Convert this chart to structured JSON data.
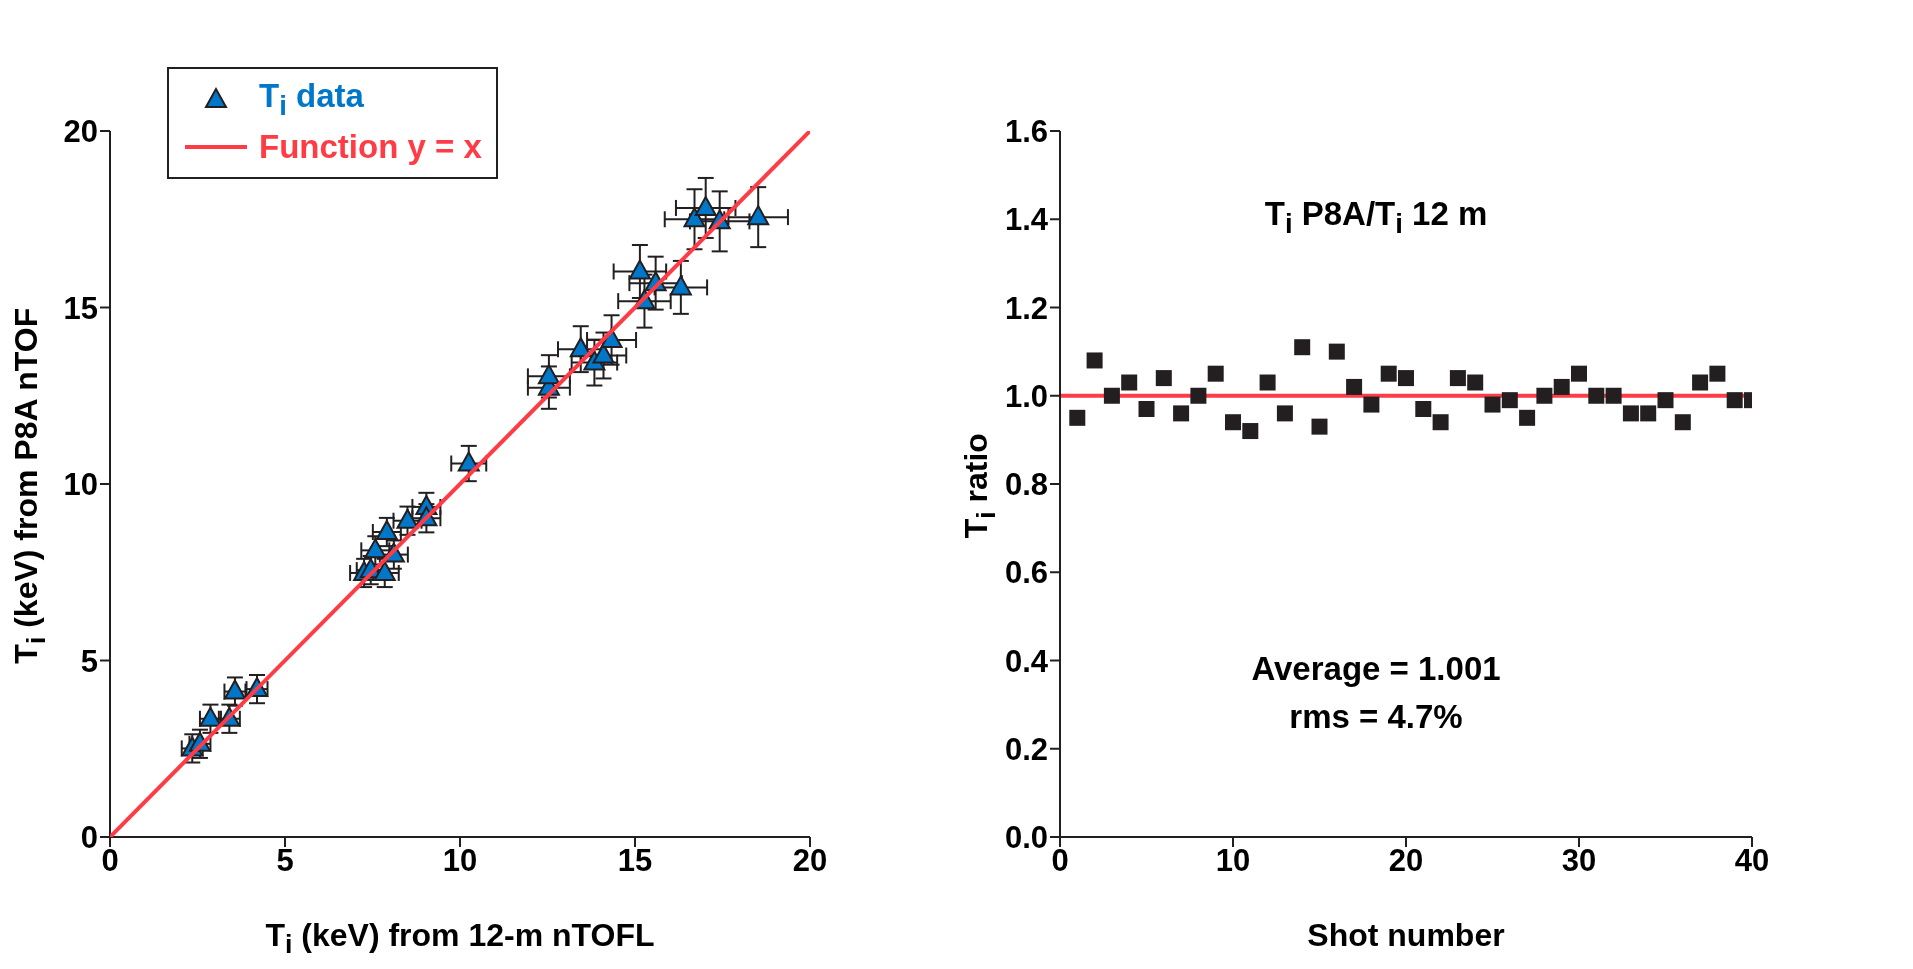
{
  "chart_data": [
    {
      "type": "scatter",
      "xlabel": "T$_{i}$ (keV) from 12-m nTOFL",
      "ylabel": "T$_{i}$ (keV) from P8A nTOF",
      "xlim": [
        0,
        20
      ],
      "ylim": [
        0,
        20
      ],
      "xticks": [
        0,
        5,
        10,
        15,
        20
      ],
      "yticks": [
        0,
        5,
        10,
        15,
        20
      ],
      "legend": "top left",
      "series": [
        {
          "name": "T$_{i}$ data",
          "color": "#0077c8",
          "marker": "triangle",
          "x": [
            2.35,
            2.57,
            2.87,
            3.41,
            3.57,
            4.2,
            7.26,
            7.45,
            7.85,
            7.58,
            8.11,
            7.91,
            8.5,
            9.04,
            9.04,
            10.25,
            12.54,
            12.54,
            13.45,
            13.84,
            14.1,
            14.33,
            15.27,
            15.14,
            15.59,
            16.31,
            16.7,
            17.02,
            17.42,
            18.52
          ],
          "values": [
            2.51,
            2.64,
            3.35,
            3.35,
            4.12,
            4.19,
            7.48,
            7.56,
            7.48,
            8.12,
            8.0,
            8.64,
            8.96,
            9.35,
            9.03,
            10.58,
            12.73,
            13.05,
            13.82,
            13.44,
            13.64,
            14.08,
            15.18,
            16.02,
            15.69,
            15.57,
            17.5,
            17.82,
            17.44,
            17.56
          ],
          "errors": [
            0.4,
            0.4,
            0.4,
            0.4,
            0.4,
            0.4,
            0.4,
            0.4,
            0.4,
            0.4,
            0.4,
            0.4,
            0.4,
            0.4,
            0.4,
            0.5,
            0.6,
            0.6,
            0.65,
            0.65,
            0.65,
            0.7,
            0.75,
            0.75,
            0.75,
            0.75,
            0.85,
            0.85,
            0.85,
            0.85
          ],
          "xerrors": [
            0.3,
            0.3,
            0.3,
            0.3,
            0.3,
            0.3,
            0.4,
            0.4,
            0.4,
            0.4,
            0.4,
            0.4,
            0.4,
            0.4,
            0.4,
            0.5,
            0.6,
            0.6,
            0.65,
            0.65,
            0.65,
            0.7,
            0.75,
            0.75,
            0.75,
            0.75,
            0.85,
            0.85,
            0.85,
            0.85
          ]
        },
        {
          "name": "Function y = x",
          "type": "line",
          "color": "#ff3b45",
          "marker": "none",
          "x": [
            0,
            20
          ],
          "values": [
            0,
            20
          ]
        }
      ]
    },
    {
      "type": "scatter",
      "xlabel": "Shot number",
      "ylabel": "T$_{i}$ ratio",
      "xlim": [
        0,
        40
      ],
      "ylim": [
        0,
        1.6
      ],
      "xticks": [
        0,
        10,
        20,
        30,
        40
      ],
      "yticks": [
        {
          "value": 0,
          "label": "0.0"
        },
        0.2,
        0.4,
        0.6,
        0.8,
        {
          "value": 1,
          "label": "1.0"
        },
        1.2,
        1.4,
        1.6
      ],
      "series": [
        {
          "color": "#231f20",
          "marker": "square",
          "x": [
            1,
            2,
            3,
            4,
            5,
            6,
            7,
            8,
            9,
            10,
            11,
            12,
            13,
            14,
            15,
            16,
            17,
            18,
            19,
            20,
            21,
            22,
            23,
            24,
            25,
            26,
            27,
            28,
            29,
            30,
            31,
            32,
            33,
            34,
            35,
            36,
            37,
            38,
            39,
            40
          ],
          "values": [
            0.95,
            1.08,
            1.0,
            1.03,
            0.97,
            1.04,
            0.96,
            1.0,
            1.05,
            0.94,
            0.92,
            1.03,
            0.96,
            1.11,
            0.93,
            1.1,
            1.02,
            0.98,
            1.05,
            1.04,
            0.97,
            0.94,
            1.04,
            1.03,
            0.98,
            0.99,
            0.95,
            1.0,
            1.02,
            1.05,
            1.0,
            1.0,
            0.96,
            0.96,
            0.99,
            0.94,
            1.03,
            1.05,
            0.99,
            0.99
          ]
        }
      ],
      "ref_lines": [
        {
          "axis": "y",
          "value": 1,
          "color": "#ff3b45"
        }
      ],
      "annotations": [
        "T$_{i}$ P8A/T$_{i}$ 12 m",
        "Average = 1.001",
        "rms = 4.7%"
      ]
    }
  ]
}
